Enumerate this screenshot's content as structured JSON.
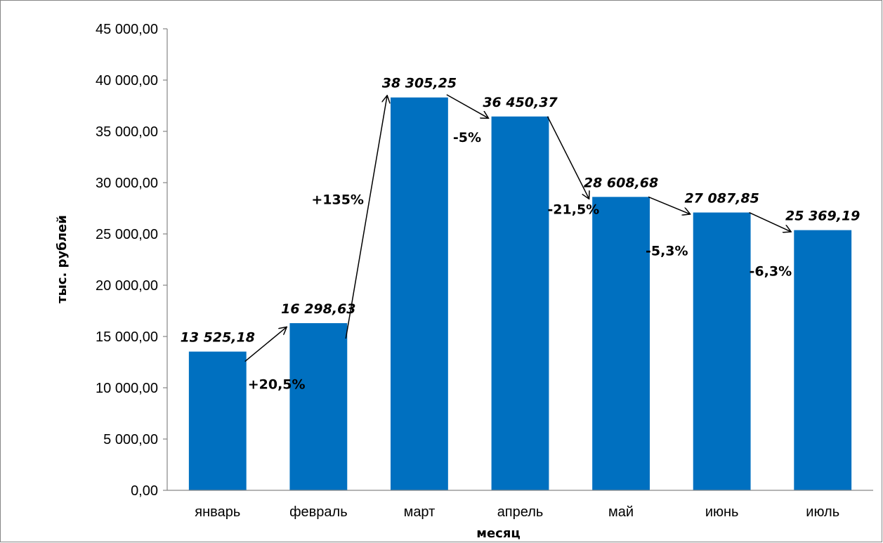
{
  "chart_data": {
    "type": "bar",
    "categories": [
      "январь",
      "февраль",
      "март",
      "апрель",
      "май",
      "июнь",
      "июль"
    ],
    "values": [
      13525.18,
      16298.63,
      38305.25,
      36450.37,
      28608.68,
      27087.85,
      25369.19
    ],
    "data_labels": [
      "13 525,18",
      "16 298,63",
      "38 305,25",
      "36 450,37",
      "28 608,68",
      "27 087,85",
      "25 369,19"
    ],
    "ylim": [
      0,
      45000
    ],
    "yticks": [
      0,
      5000,
      10000,
      15000,
      20000,
      25000,
      30000,
      35000,
      40000,
      45000
    ],
    "ytick_labels": [
      "0,00",
      "5 000,00",
      "10 000,00",
      "15 000,00",
      "20 000,00",
      "25 000,00",
      "30 000,00",
      "35 000,00",
      "40 000,00",
      "45 000,00"
    ],
    "xlabel": "месяц",
    "ylabel": "тыс. рублей",
    "grid": false,
    "bar_color": "#0070C0",
    "change_annotations": [
      "+20,5%",
      "+135%",
      "-5%",
      "-21,5%",
      "-5,3%",
      "-6,3%"
    ]
  }
}
